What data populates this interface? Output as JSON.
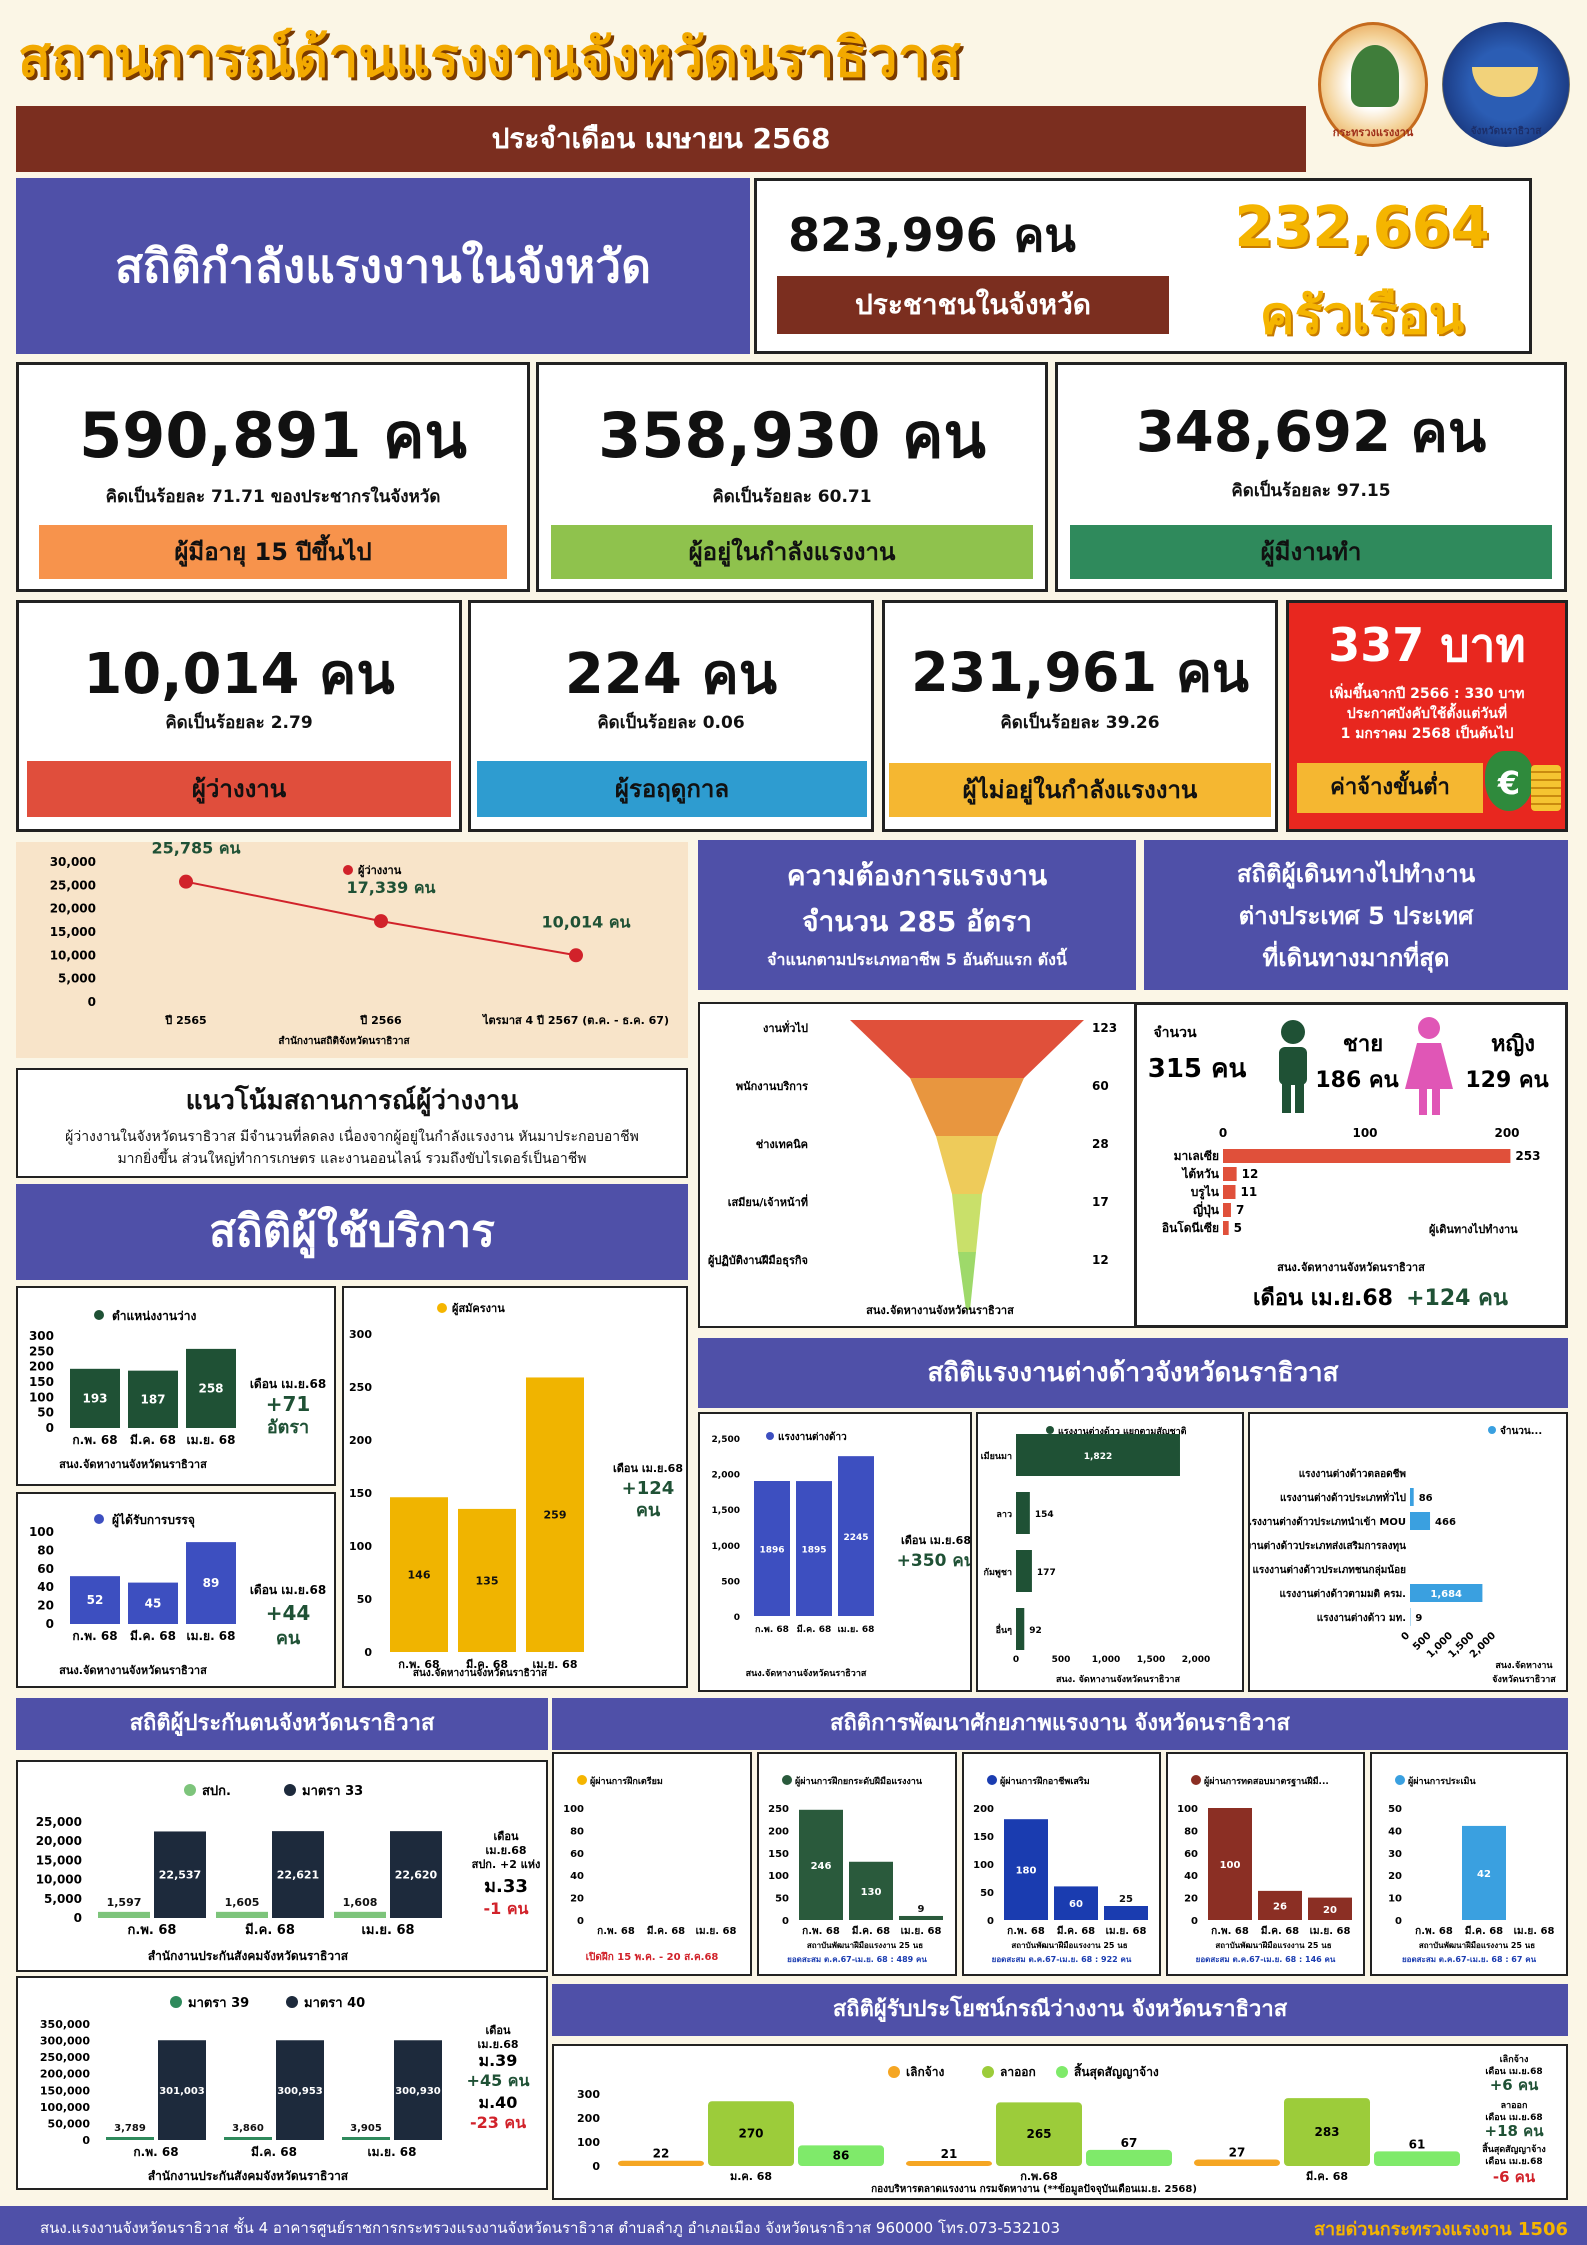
{
  "header": {
    "title": "สถานการณ์ด้านแรงงานจังหวัดนราธิวาส",
    "subtitle": "ประจำเดือน เมษายน 2568",
    "logo1_text": "กระทรวงแรงงาน",
    "logo2_text": "จังหวัดนราธิวาส"
  },
  "population": {
    "section_title": "สถิติกำลังแรงงานในจังหวัด",
    "people": "823,996 คน",
    "people_label": "ประชาชนในจังหวัด",
    "households": "232,664",
    "households_unit": "ครัวเรือน"
  },
  "stats": [
    {
      "value": "590,891 คน",
      "note": "คิดเป็นร้อยละ 71.71 ของประชากรในจังหวัด",
      "label": "ผู้มีอายุ 15 ปีขึ้นไป",
      "color": "#f7934c"
    },
    {
      "value": "358,930 คน",
      "note": "คิดเป็นร้อยละ 60.71",
      "label": "ผู้อยู่ในกำลังแรงงาน",
      "color": "#8fc24d"
    },
    {
      "value": "348,692 คน",
      "note": "คิดเป็นร้อยละ 97.15",
      "label": "ผู้มีงานทำ",
      "color": "#2f8a5c"
    },
    {
      "value": "10,014 คน",
      "note": "คิดเป็นร้อยละ 2.79",
      "label": "ผู้ว่างงาน",
      "color": "#e04e3c"
    },
    {
      "value": "224 คน",
      "note": "คิดเป็นร้อยละ 0.06",
      "label": "ผู้รอฤดูกาล",
      "color": "#2e9cd0"
    },
    {
      "value": "231,961 คน",
      "note": "คิดเป็นร้อยละ 39.26",
      "label": "ผู้ไม่อยู่ในกำลังแรงงาน",
      "color": "#f5b731"
    }
  ],
  "wage": {
    "value": "337 บาท",
    "note1": "เพิ่มขึ้นจากปี 2566 : 330 บาท",
    "note2": "ประกาศบังคับใช้ตั้งแต่วันที่",
    "note3": "1 มกราคม 2568 เป็นต้นไป",
    "label": "ค่าจ้างขั้นต่ำ"
  },
  "unemp_chart": {
    "legend": "ผู้ว่างงาน",
    "source": "สำนักงานสถิติจังหวัดนราธิวาส",
    "yticks": [
      "30,000",
      "25,000",
      "20,000",
      "15,000",
      "10,000",
      "5,000",
      "0"
    ]
  },
  "trend": {
    "title": "แนวโน้มสถานการณ์ผู้ว่างงาน",
    "line1": "ผู้ว่างงานในจังหวัดนราธิวาส มีจำนวนที่ลดลง เนื่องจากผู้อยู่ในกำลังแรงงาน หันมาประกอบอาชีพ",
    "line2": "มากยิ่งขึ้น ส่วนใหญ่ทำการเกษตร และงานออนไลน์ รวมถึงขับไรเดอร์เป็นอาชีพ"
  },
  "service_title": "สถิติผู้ใช้บริการ",
  "vacancy": {
    "legend": "ตำแหน่งงานว่าง",
    "source": "สนง.จัดหางานจังหวัดนราธิวาส",
    "note1": "เดือน เม.ย.68",
    "note2": "+71",
    "note3": "อัตรา",
    "yticks": [
      "300",
      "250",
      "200",
      "150",
      "100",
      "50",
      "0"
    ]
  },
  "placed": {
    "legend": "ผู้ได้รับการบรรจุ",
    "source": "สนง.จัดหางานจังหวัดนราธิวาส",
    "note1": "เดือน เม.ย.68",
    "note2": "+44",
    "note3": "คน",
    "yticks": [
      "100",
      "80",
      "60",
      "40",
      "20",
      "0"
    ]
  },
  "applicants": {
    "legend": "ผู้สมัครงาน",
    "source": "สนง.จัดหางานจังหวัดนราธิวาส",
    "note1": "เดือน เม.ย.68",
    "note2": "+124",
    "note3": "คน",
    "yticks": [
      "300",
      "250",
      "200",
      "150",
      "100",
      "50",
      "0"
    ]
  },
  "demand": {
    "title1": "ความต้องการแรงงาน",
    "title2": "จำนวน 285 อัตรา",
    "title3": "จำแนกตามประเภทอาชีพ 5 อันดับแรก ดังนี้",
    "source": "สนง.จัดหางานจังหวัดนราธิวาส"
  },
  "abroad": {
    "title1": "สถิติผู้เดินทางไปทำงาน",
    "title2": "ต่างประเทศ 5 ประเทศ",
    "title3": "ที่เดินทางมากที่สุด",
    "total_label": "จำนวน",
    "total": "315 คน",
    "male_label": "ชาย",
    "male": "186 คน",
    "female_label": "หญิง",
    "female": "129 คน",
    "legend": "ผู้เดินทางไปทำงาน",
    "source": "สนง.จัดหางานจังหวัดนราธิวาส",
    "month": "เดือน เม.ย.68",
    "change": "+124 คน",
    "xticks": [
      "0",
      "100",
      "200"
    ]
  },
  "foreign_title": "สถิติแรงงานต่างด้าวจังหวัดนราธิวาส",
  "foreign_total": {
    "legend": "แรงงานต่างด้าว",
    "source": "สนง.จัดหางานจังหวัดนราธิวาส",
    "note1": "เดือน เม.ย.68",
    "note2": "+350 คน",
    "yticks": [
      "2,500",
      "2,000",
      "1,500",
      "1,000",
      "500",
      "0"
    ]
  },
  "foreign_nat": {
    "legend": "แรงงานต่างด้าว แยกตามสัญชาติ",
    "source": "สนง. จัดหางานจังหวัดนราธิวาส",
    "xticks": [
      "0",
      "500",
      "1,000",
      "1,500",
      "2,000"
    ]
  },
  "foreign_type": {
    "legend": "จำนวน...",
    "source1": "สนง.จัดหางาน",
    "source2": "จังหวัดนราธิวาส",
    "xticks": [
      "0",
      "500",
      "1,000",
      "1,500",
      "2,000"
    ]
  },
  "insured_title": "สถิติผู้ประกันตนจังหวัดนราธิวาส",
  "insured33": {
    "legend1": "สปก.",
    "legend2": "มาตรา 33",
    "source": "สำนักงานประกันสังคมจังหวัดนราธิวาส",
    "note1": "เดือน",
    "note2": "เม.ย.68",
    "note3": "สปก. +2 แห่ง",
    "note4": "ม.33",
    "note5": "-1 คน",
    "yticks": [
      "25,000",
      "20,000",
      "15,000",
      "10,000",
      "5,000",
      "0"
    ]
  },
  "insured39": {
    "legend1": "มาตรา 39",
    "legend2": "มาตรา 40",
    "source": "สำนักงานประกันสังคมจังหวัดนราธิวาส",
    "note1": "เดือน",
    "note2": "เม.ย.68",
    "note3": "ม.39",
    "note4": "+45 คน",
    "note5": "ม.40",
    "note6": "-23 คน",
    "yticks": [
      "350,000",
      "300,000",
      "250,000",
      "200,000",
      "150,000",
      "100,000",
      "50,000",
      "0"
    ]
  },
  "skill_title": "สถิติการพัฒนาศักยภาพแรงงาน จังหวัดนราธิวาส",
  "skill": [
    {
      "legend": "ผู้ผ่านการฝึกเตรียม",
      "color": "#f5b500",
      "source": "เปิดฝึก 15 พ.ค. - 20 ส.ค.68",
      "values": [
        0,
        0,
        0
      ],
      "yticks": [
        "100",
        "80",
        "60",
        "40",
        "20",
        "0"
      ]
    },
    {
      "legend": "ผู้ผ่านการฝึกยกระดับฝีมือแรงงาน",
      "color": "#2a5a3c",
      "source": "สถาบันพัฒนาฝีมือแรงงาน 25 นธ",
      "total": "ยอดสะสม ต.ค.67-เม.ย. 68 : 489 คน",
      "values": [
        246,
        130,
        9
      ],
      "yticks": [
        "250",
        "200",
        "150",
        "100",
        "50",
        "0"
      ]
    },
    {
      "legend": "ผู้ผ่านการฝึกอาชีพเสริม",
      "color": "#1a3cb0",
      "source": "สถาบันพัฒนาฝีมือแรงงาน 25 นธ",
      "total": "ยอดสะสม ต.ค.67-เม.ย. 68 : 922 คน",
      "values": [
        180,
        60,
        25
      ],
      "yticks": [
        "200",
        "150",
        "100",
        "50",
        "0"
      ]
    },
    {
      "legend": "ผู้ผ่านการทดสอบมาตรฐานฝีมื...",
      "color": "#8b2f24",
      "source": "สถาบันพัฒนาฝีมือแรงงาน 25 นธ",
      "total": "ยอดสะสม ต.ค.67-เม.ย. 68 : 146 คน",
      "values": [
        100,
        26,
        20
      ],
      "yticks": [
        "100",
        "80",
        "60",
        "40",
        "20",
        "0"
      ]
    },
    {
      "legend": "ผู้ผ่านการประเมิน",
      "color": "#3aa0e0",
      "source": "สถาบันพัฒนาฝีมือแรงงาน 25 นธ",
      "total": "ยอดสะสม ต.ค.67-เม.ย. 68 : 67 คน",
      "values": [
        0,
        42,
        0
      ],
      "yticks": [
        "50",
        "40",
        "30",
        "20",
        "10",
        "0"
      ]
    }
  ],
  "benefit_title": "สถิติผู้รับประโยชน์กรณีว่างงาน จังหวัดนราธิวาส",
  "benefit": {
    "legend1": "เลิกจ้าง",
    "legend2": "ลาออก",
    "legend3": "สิ้นสุดสัญญาจ้าง",
    "source": "กองบริหารตลาดแรงงาน กรมจัดหางาน (**ข้อมูลปัจจุบันเดือนเม.ย. 2568)",
    "yticks": [
      "300",
      "200",
      "100",
      "0"
    ],
    "n1": "เลิกจ้าง",
    "n1b": "เดือน เม.ย.68",
    "n1c": "+6 คน",
    "n2": "ลาออก",
    "n2b": "เดือน เม.ย.68",
    "n2c": "+18 คน",
    "n3": "สิ้นสุดสัญญาจ้าง",
    "n3b": "เดือน เม.ย.68",
    "n3c": "-6 คน"
  },
  "footer": {
    "address": "สนง.แรงงานจังหวัดนราธิวาส ชั้น 4 อาคารศูนย์ราชการกระทรวงแรงงานจังหวัดนราธิวาส ตำบลลำภู อำเภอเมือง จังหวัดนราธิวาส 960000 โทร.073-532103",
    "hotline": "สายด่วนกระทรวงแรงงาน 1506"
  },
  "chart_data": [
    {
      "type": "line",
      "title": "ผู้ว่างงาน",
      "categories": [
        "ปี 2565",
        "ปี 2566",
        "ไตรมาส 4 ปี 2567 (ต.ค. - ธ.ค. 67)"
      ],
      "values": [
        25785,
        17339,
        10014
      ],
      "labels": [
        "25,785 คน",
        "17,339 คน",
        "10,014 คน"
      ],
      "ylim": [
        0,
        30000
      ]
    },
    {
      "type": "bar",
      "title": "ตำแหน่งงานว่าง",
      "categories": [
        "ก.พ. 68",
        "มี.ค. 68",
        "เม.ย. 68"
      ],
      "values": [
        193,
        187,
        258
      ],
      "ylim": [
        0,
        300
      ]
    },
    {
      "type": "bar",
      "title": "ผู้ได้รับการบรรจุ",
      "categories": [
        "ก.พ. 68",
        "มี.ค. 68",
        "เม.ย. 68"
      ],
      "values": [
        52,
        45,
        89
      ],
      "ylim": [
        0,
        100
      ]
    },
    {
      "type": "bar",
      "title": "ผู้สมัครงาน",
      "categories": [
        "ก.พ. 68",
        "มี.ค. 68",
        "เม.ย. 68"
      ],
      "values": [
        146,
        135,
        259
      ],
      "ylim": [
        0,
        300
      ]
    },
    {
      "type": "funnel",
      "title": "ความต้องการแรงงาน",
      "categories": [
        "งานทั่วไป",
        "พนักงานบริการ",
        "ช่างเทคนิค",
        "เสมียน/เจ้าหน้าที่",
        "ผู้ปฏิบัติงานฝีมือธุรกิจ"
      ],
      "values": [
        123,
        60,
        28,
        17,
        12
      ]
    },
    {
      "type": "bar",
      "orientation": "horizontal",
      "title": "ผู้เดินทางไปทำงาน",
      "categories": [
        "มาเลเซีย",
        "ไต้หวัน",
        "บรูไน",
        "ญี่ปุ่น",
        "อินโดนีเซีย"
      ],
      "values": [
        253,
        12,
        11,
        7,
        5
      ],
      "xlim": [
        0,
        250
      ]
    },
    {
      "type": "bar",
      "title": "แรงงานต่างด้าว",
      "categories": [
        "ก.พ. 68",
        "มี.ค. 68",
        "เม.ย. 68"
      ],
      "values": [
        1896,
        1895,
        2245
      ],
      "ylim": [
        0,
        2500
      ]
    },
    {
      "type": "bar",
      "orientation": "horizontal",
      "title": "แรงงานต่างด้าว แยกตามสัญชาติ",
      "categories": [
        "เมียนมา",
        "ลาว",
        "กัมพูชา",
        "อื่นๆ"
      ],
      "values": [
        1822,
        154,
        177,
        92
      ],
      "xlim": [
        0,
        2000
      ]
    },
    {
      "type": "bar",
      "orientation": "horizontal",
      "title": "จำนวน",
      "categories": [
        "แรงงานต่างด้าวตลอดชีพ",
        "แรงงานต่างด้าวประเภททั่วไป",
        "แรงงานต่างด้าวประเภทนำเข้า MOU",
        "แรงงานต่างด้าวประเภทส่งเสริมการลงทุน",
        "แรงงานต่างด้าวประเภทชนกลุ่มน้อย",
        "แรงงานต่างด้าวตามมติ ครม.",
        "แรงงานต่างด้าว มท."
      ],
      "values": [
        0,
        86,
        466,
        0,
        0,
        1684,
        9
      ],
      "xlim": [
        0,
        2000
      ]
    },
    {
      "type": "bar",
      "title": "ผู้ประกันตน สปก. / มาตรา 33",
      "categories": [
        "ก.พ. 68",
        "มี.ค. 68",
        "เม.ย. 68"
      ],
      "series": [
        {
          "name": "สปก.",
          "values": [
            1597,
            1605,
            1608
          ]
        },
        {
          "name": "มาตรา 33",
          "values": [
            22537,
            22621,
            22620
          ]
        }
      ],
      "ylim": [
        0,
        25000
      ]
    },
    {
      "type": "bar",
      "title": "ผู้ประกันตน มาตรา 39 / มาตรา 40",
      "categories": [
        "ก.พ. 68",
        "มี.ค. 68",
        "เม.ย. 68"
      ],
      "series": [
        {
          "name": "มาตรา 39",
          "values": [
            3789,
            3860,
            3905
          ]
        },
        {
          "name": "มาตรา 40",
          "values": [
            301003,
            300953,
            300930
          ]
        }
      ],
      "ylim": [
        0,
        350000
      ]
    },
    {
      "type": "bar",
      "title": "ผู้ผ่านการฝึกเตรียม",
      "categories": [
        "ก.พ. 68",
        "มี.ค. 68",
        "เม.ย. 68"
      ],
      "values": [
        0,
        0,
        0
      ],
      "ylim": [
        0,
        100
      ]
    },
    {
      "type": "bar",
      "title": "ผู้ผ่านการฝึกยกระดับฝีมือแรงงาน",
      "categories": [
        "ก.พ. 68",
        "มี.ค. 68",
        "เม.ย. 68"
      ],
      "values": [
        246,
        130,
        9
      ],
      "ylim": [
        0,
        250
      ]
    },
    {
      "type": "bar",
      "title": "ผู้ผ่านการฝึกอาชีพเสริม",
      "categories": [
        "ก.พ. 68",
        "มี.ค. 68",
        "เม.ย. 68"
      ],
      "values": [
        180,
        60,
        25
      ],
      "ylim": [
        0,
        200
      ]
    },
    {
      "type": "bar",
      "title": "ผู้ผ่านการทดสอบมาตรฐานฝีมื...",
      "categories": [
        "ก.พ. 68",
        "มี.ค. 68",
        "เม.ย. 68"
      ],
      "values": [
        100,
        26,
        20
      ],
      "ylim": [
        0,
        100
      ]
    },
    {
      "type": "bar",
      "title": "ผู้ผ่านการประเมิน",
      "categories": [
        "ก.พ. 68",
        "มี.ค. 68",
        "เม.ย. 68"
      ],
      "values": [
        0,
        42,
        0
      ],
      "ylim": [
        0,
        50
      ]
    },
    {
      "type": "bar",
      "title": "ผู้รับประโยชน์กรณีว่างงาน",
      "categories": [
        "ม.ค. 68",
        "ก.พ.68",
        "มี.ค. 68"
      ],
      "series": [
        {
          "name": "เลิกจ้าง",
          "values": [
            22,
            21,
            27
          ]
        },
        {
          "name": "ลาออก",
          "values": [
            270,
            265,
            283
          ]
        },
        {
          "name": "สิ้นสุดสัญญาจ้าง",
          "values": [
            86,
            67,
            61
          ]
        }
      ],
      "ylim": [
        0,
        300
      ]
    }
  ]
}
